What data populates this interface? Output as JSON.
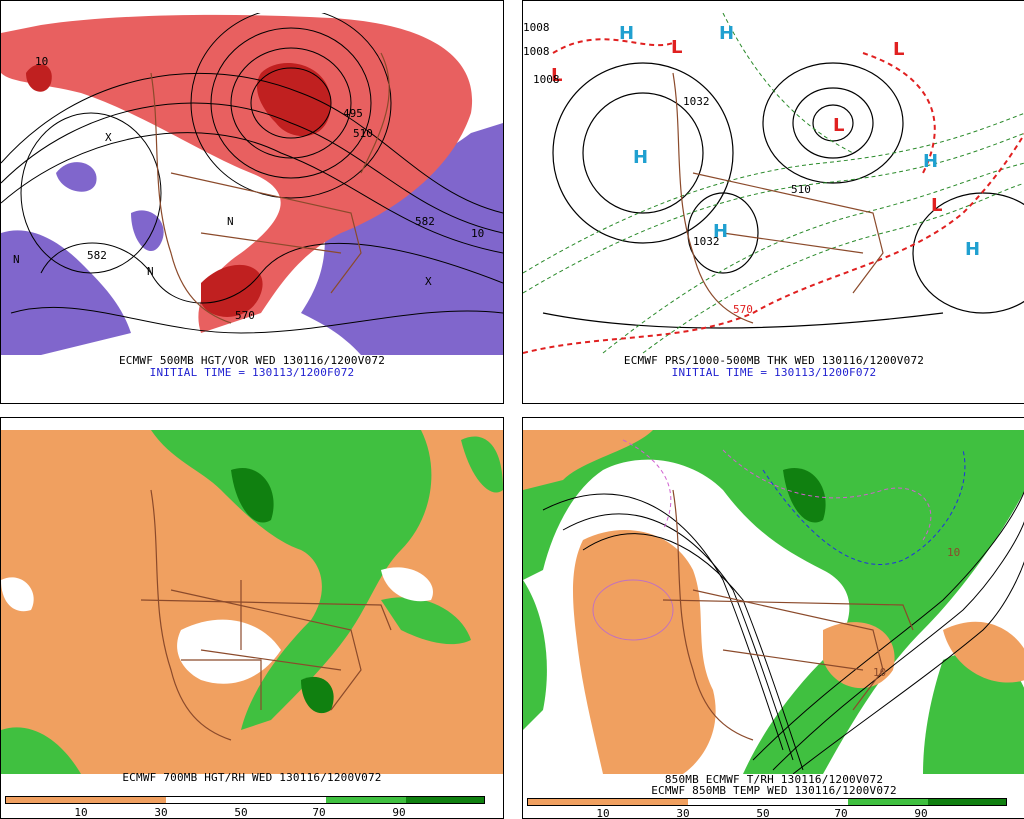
{
  "panels": {
    "top_left": {
      "caption_line1": "ECMWF 500MB HGT/VOR WED 130116/1200V072",
      "caption_line2": "INITIAL TIME = 130113/1200F072",
      "contour_labels": [
        "582",
        "582",
        "570",
        "510",
        "495",
        "10",
        "10"
      ]
    },
    "top_right": {
      "caption_line1": "ECMWF PRS/1000-500MB THK WED 130116/1200V072",
      "caption_line2": "INITIAL TIME = 130113/1200F072",
      "contour_labels": [
        "1008",
        "1008",
        "1008",
        "570",
        "510",
        "1032",
        "1032"
      ]
    },
    "bottom_left": {
      "caption_line1": "ECMWF 700MB HGT/RH WED 130116/1200V072",
      "colorbar_ticks": [
        "10",
        "30",
        "50",
        "70",
        "90"
      ]
    },
    "bottom_right": {
      "caption_line1": "850MB ECMWF T/RH 130116/1200V072",
      "caption_line2": "ECMWF 850MB TEMP WED 130116/1200V072",
      "contour_labels": [
        "10",
        "10"
      ],
      "colorbar_ticks": [
        "10",
        "30",
        "50",
        "70",
        "90"
      ]
    }
  },
  "colors": {
    "dry": "#f0a060",
    "moist_light": "#40c040",
    "moist_dark": "#108010",
    "vort_red": "#d03030",
    "vort_purple": "#8066cc",
    "borders": "#8b4a2b",
    "high_marker": "#20a0d0",
    "low_marker": "#e02020"
  },
  "markers": {
    "high": "H",
    "low": "L",
    "n": "N",
    "x": "X"
  }
}
